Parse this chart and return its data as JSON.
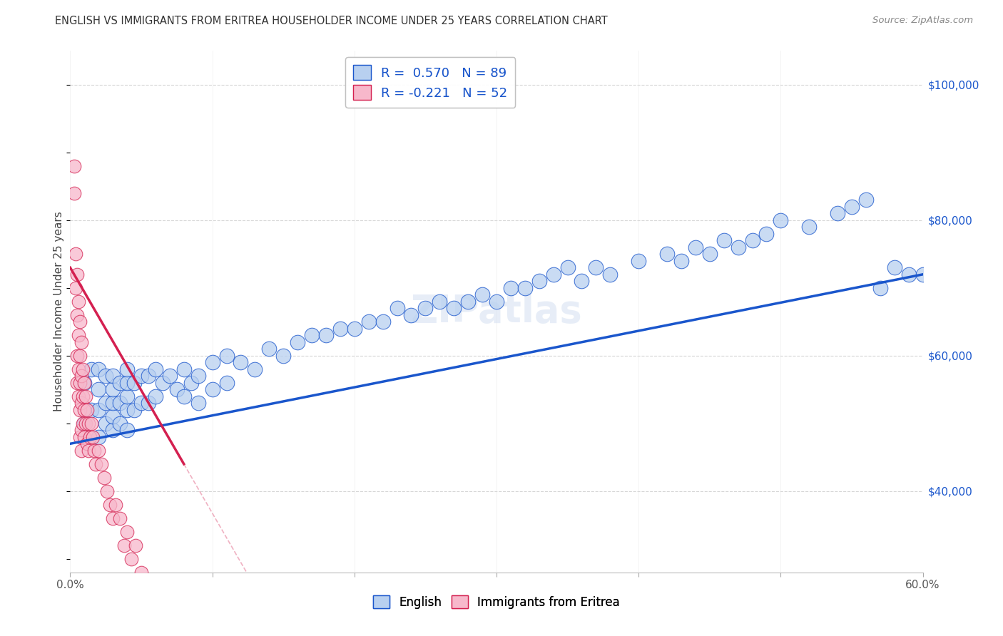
{
  "title": "ENGLISH VS IMMIGRANTS FROM ERITREA HOUSEHOLDER INCOME UNDER 25 YEARS CORRELATION CHART",
  "source": "Source: ZipAtlas.com",
  "ylabel": "Householder Income Under 25 years",
  "r_english": 0.57,
  "n_english": 89,
  "r_eritrea": -0.221,
  "n_eritrea": 52,
  "english_color": "#b8d0f0",
  "eritrea_color": "#f7b8cb",
  "english_line_color": "#1a56cc",
  "eritrea_line_color": "#d42050",
  "background_color": "#ffffff",
  "grid_color": "#cccccc",
  "xmin": 0.0,
  "xmax": 0.6,
  "ymin": 28000,
  "ymax": 105000,
  "y_ticks": [
    40000,
    60000,
    80000,
    100000
  ],
  "y_tick_labels": [
    "$40,000",
    "$60,000",
    "$80,000",
    "$100,000"
  ],
  "x_ticks": [
    0.0,
    0.1,
    0.2,
    0.3,
    0.4,
    0.5,
    0.6
  ],
  "x_tick_labels": [
    "0.0%",
    "",
    "",
    "",
    "",
    "",
    "60.0%"
  ],
  "english_x": [
    0.01,
    0.01,
    0.015,
    0.015,
    0.02,
    0.02,
    0.02,
    0.02,
    0.025,
    0.025,
    0.025,
    0.03,
    0.03,
    0.03,
    0.03,
    0.03,
    0.035,
    0.035,
    0.035,
    0.04,
    0.04,
    0.04,
    0.04,
    0.04,
    0.045,
    0.045,
    0.05,
    0.05,
    0.055,
    0.055,
    0.06,
    0.06,
    0.065,
    0.07,
    0.075,
    0.08,
    0.08,
    0.085,
    0.09,
    0.09,
    0.1,
    0.1,
    0.11,
    0.11,
    0.12,
    0.13,
    0.14,
    0.15,
    0.16,
    0.17,
    0.18,
    0.19,
    0.2,
    0.21,
    0.22,
    0.23,
    0.24,
    0.25,
    0.26,
    0.27,
    0.28,
    0.29,
    0.3,
    0.31,
    0.32,
    0.33,
    0.34,
    0.35,
    0.36,
    0.37,
    0.38,
    0.4,
    0.42,
    0.43,
    0.44,
    0.45,
    0.46,
    0.47,
    0.48,
    0.49,
    0.5,
    0.52,
    0.54,
    0.55,
    0.56,
    0.57,
    0.58,
    0.59,
    0.6
  ],
  "english_y": [
    50000,
    56000,
    52000,
    58000,
    48000,
    52000,
    55000,
    58000,
    50000,
    53000,
    57000,
    49000,
    51000,
    53000,
    55000,
    57000,
    50000,
    53000,
    56000,
    49000,
    52000,
    54000,
    56000,
    58000,
    52000,
    56000,
    53000,
    57000,
    53000,
    57000,
    54000,
    58000,
    56000,
    57000,
    55000,
    54000,
    58000,
    56000,
    53000,
    57000,
    55000,
    59000,
    56000,
    60000,
    59000,
    58000,
    61000,
    60000,
    62000,
    63000,
    63000,
    64000,
    64000,
    65000,
    65000,
    67000,
    66000,
    67000,
    68000,
    67000,
    68000,
    69000,
    68000,
    70000,
    70000,
    71000,
    72000,
    73000,
    71000,
    73000,
    72000,
    74000,
    75000,
    74000,
    76000,
    75000,
    77000,
    76000,
    77000,
    78000,
    80000,
    79000,
    81000,
    82000,
    83000,
    70000,
    73000,
    72000,
    72000
  ],
  "eritrea_x": [
    0.003,
    0.003,
    0.004,
    0.004,
    0.005,
    0.005,
    0.005,
    0.005,
    0.006,
    0.006,
    0.006,
    0.006,
    0.007,
    0.007,
    0.007,
    0.007,
    0.007,
    0.008,
    0.008,
    0.008,
    0.008,
    0.008,
    0.009,
    0.009,
    0.009,
    0.01,
    0.01,
    0.01,
    0.011,
    0.011,
    0.012,
    0.012,
    0.013,
    0.013,
    0.014,
    0.015,
    0.016,
    0.017,
    0.018,
    0.02,
    0.022,
    0.024,
    0.026,
    0.028,
    0.03,
    0.032,
    0.035,
    0.038,
    0.04,
    0.043,
    0.046,
    0.05
  ],
  "eritrea_y": [
    88000,
    84000,
    75000,
    70000,
    72000,
    66000,
    60000,
    56000,
    68000,
    63000,
    58000,
    54000,
    65000,
    60000,
    56000,
    52000,
    48000,
    62000,
    57000,
    53000,
    49000,
    46000,
    58000,
    54000,
    50000,
    56000,
    52000,
    48000,
    54000,
    50000,
    52000,
    47000,
    50000,
    46000,
    48000,
    50000,
    48000,
    46000,
    44000,
    46000,
    44000,
    42000,
    40000,
    38000,
    36000,
    38000,
    36000,
    32000,
    34000,
    30000,
    32000,
    28000
  ],
  "eritrea_trend_x0": 0.0,
  "eritrea_trend_y0": 73000,
  "eritrea_trend_x1": 0.08,
  "eritrea_trend_y1": 44000,
  "english_trend_x0": 0.0,
  "english_trend_y0": 47000,
  "english_trend_x1": 0.6,
  "english_trend_y1": 72000
}
